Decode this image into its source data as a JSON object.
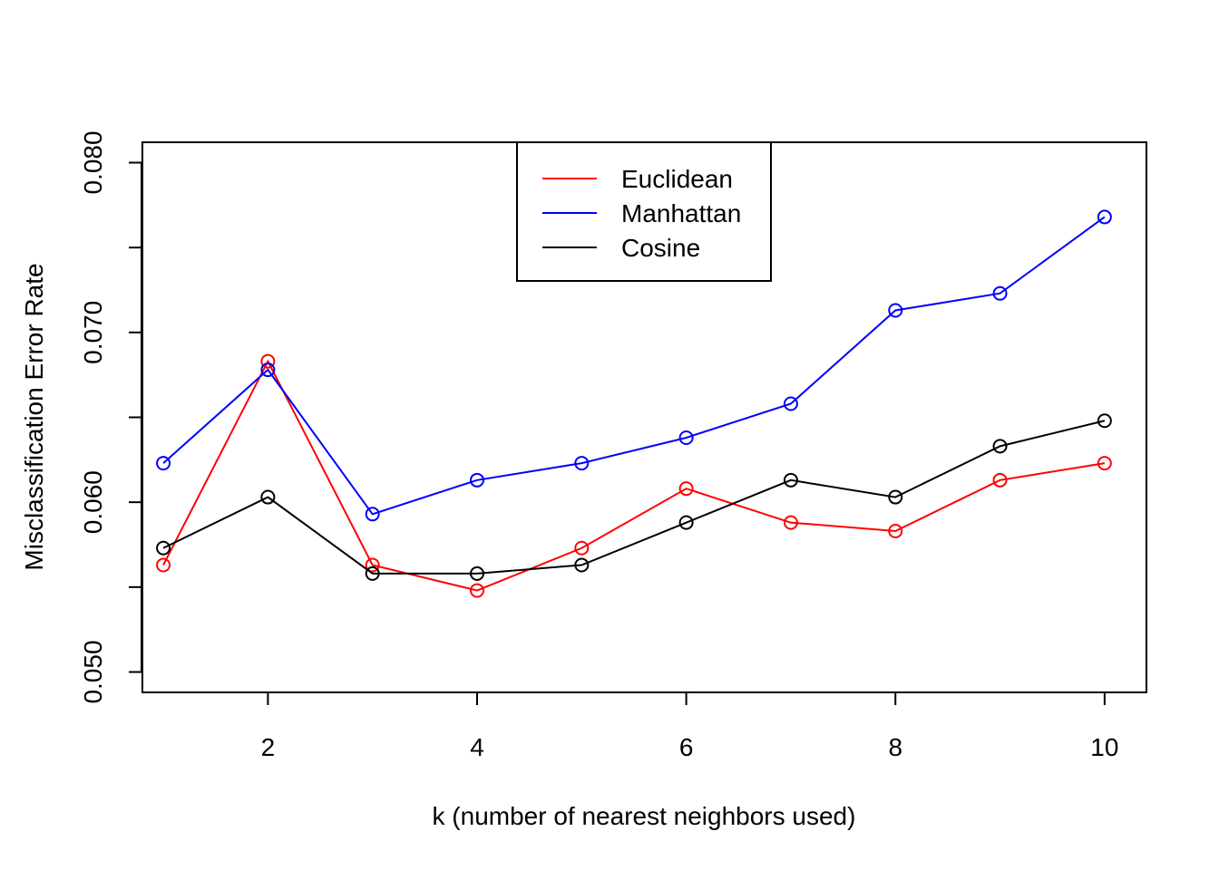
{
  "chart_data": {
    "type": "line",
    "title": "",
    "xlabel": "k (number of nearest neighbors used)",
    "ylabel": "Misclassification Error Rate",
    "xlim": [
      0.8,
      10.4
    ],
    "ylim": [
      0.0488,
      0.0812
    ],
    "x_ticks": [
      2,
      4,
      6,
      8,
      10
    ],
    "x_tick_labels": [
      "2",
      "4",
      "6",
      "8",
      "10"
    ],
    "y_ticks": [
      0.05,
      0.055,
      0.06,
      0.065,
      0.07,
      0.075,
      0.08
    ],
    "y_tick_labels": [
      "0.050",
      "",
      "0.060",
      "",
      "0.070",
      "",
      "0.080"
    ],
    "grid": false,
    "legend_position": "top-center",
    "x": [
      1,
      2,
      3,
      4,
      5,
      6,
      7,
      8,
      9,
      10
    ],
    "series": [
      {
        "name": "Euclidean",
        "color": "#ff0000",
        "values": [
          0.0563,
          0.0683,
          0.0563,
          0.0548,
          0.0573,
          0.0608,
          0.0588,
          0.0583,
          0.0613,
          0.0623
        ]
      },
      {
        "name": "Manhattan",
        "color": "#0000ff",
        "values": [
          0.0623,
          0.0678,
          0.0593,
          0.0613,
          0.0623,
          0.0638,
          0.0658,
          0.0713,
          0.0723,
          0.0768
        ]
      },
      {
        "name": "Cosine",
        "color": "#000000",
        "values": [
          0.0573,
          0.0603,
          0.0558,
          0.0558,
          0.0563,
          0.0588,
          0.0613,
          0.0603,
          0.0633,
          0.0648
        ]
      }
    ]
  }
}
